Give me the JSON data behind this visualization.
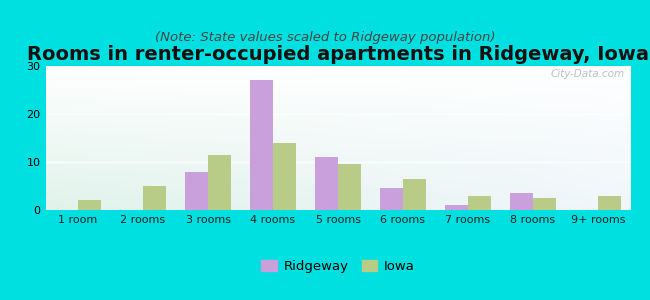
{
  "title": "Rooms in renter-occupied apartments in Ridgeway, Iowa",
  "subtitle": "(Note: State values scaled to Ridgeway population)",
  "categories": [
    "1 room",
    "2 rooms",
    "3 rooms",
    "4 rooms",
    "5 rooms",
    "6 rooms",
    "7 rooms",
    "8 rooms",
    "9+ rooms"
  ],
  "ridgeway_values": [
    0,
    0,
    8,
    27,
    11,
    4.5,
    1,
    3.5,
    0
  ],
  "iowa_values": [
    2,
    5,
    11.5,
    14,
    9.5,
    6.5,
    3,
    2.5,
    3
  ],
  "ridgeway_color": "#c9a0dc",
  "iowa_color": "#b8cc88",
  "background_outer": "#00e0e0",
  "ylim": [
    0,
    30
  ],
  "yticks": [
    0,
    10,
    20,
    30
  ],
  "bar_width": 0.35,
  "title_fontsize": 14,
  "subtitle_fontsize": 9.5,
  "watermark": "City-Data.com"
}
